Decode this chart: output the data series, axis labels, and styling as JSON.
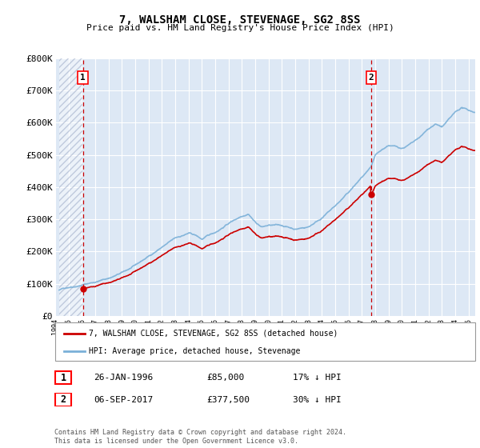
{
  "title": "7, WALSHAM CLOSE, STEVENAGE, SG2 8SS",
  "subtitle": "Price paid vs. HM Land Registry's House Price Index (HPI)",
  "ylim": [
    0,
    800000
  ],
  "yticks": [
    0,
    100000,
    200000,
    300000,
    400000,
    500000,
    600000,
    700000,
    800000
  ],
  "ytick_labels": [
    "£0",
    "£100K",
    "£200K",
    "£300K",
    "£400K",
    "£500K",
    "£600K",
    "£700K",
    "£800K"
  ],
  "hpi_color": "#7ab0d8",
  "price_color": "#cc0000",
  "vline_color": "#cc0000",
  "marker1_x": 1996.07,
  "marker1_y": 85000,
  "marker2_x": 2017.68,
  "marker2_y": 377500,
  "annotation1_label": "1",
  "annotation2_label": "2",
  "legend_label1": "7, WALSHAM CLOSE, STEVENAGE, SG2 8SS (detached house)",
  "legend_label2": "HPI: Average price, detached house, Stevenage",
  "table_row1": [
    "1",
    "26-JAN-1996",
    "£85,000",
    "17% ↓ HPI"
  ],
  "table_row2": [
    "2",
    "06-SEP-2017",
    "£377,500",
    "30% ↓ HPI"
  ],
  "footer": "Contains HM Land Registry data © Crown copyright and database right 2024.\nThis data is licensed under the Open Government Licence v3.0.",
  "plot_bg": "#dde8f5",
  "hatch_end_year": 1996.07,
  "xlim_left": 1994.3,
  "xlim_right": 2025.5
}
